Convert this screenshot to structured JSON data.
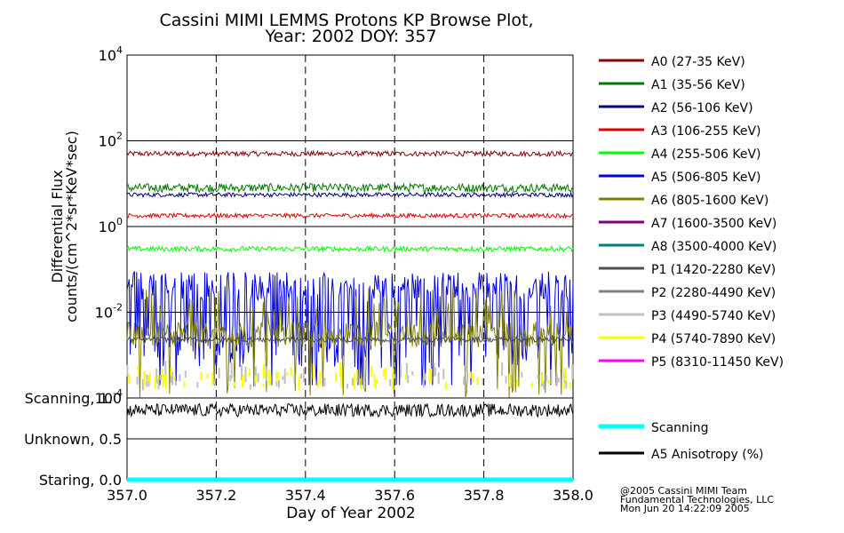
{
  "chart_data": {
    "type": "line",
    "title": "Cassini MIMI LEMMS Protons KP Browse Plot,",
    "subtitle": "Year: 2002 DOY: 357",
    "ylabel": [
      "Differential Flux",
      "counts/(cm^2*sr*KeV*sec)"
    ],
    "xlabel": "Day of Year 2002",
    "x_range": [
      357.0,
      358.0
    ],
    "x_ticks": [
      "357.0",
      "357.2",
      "357.4",
      "357.6",
      "357.8",
      "358.0"
    ],
    "x_tick_values": [
      357.0,
      357.2,
      357.4,
      357.6,
      357.8,
      358.0
    ],
    "y_scale": "log",
    "y_range": [
      0.0001,
      10000
    ],
    "y_ticks": [
      {
        "base": "10",
        "exp": "4",
        "value": 10000
      },
      {
        "base": "10",
        "exp": "2",
        "value": 100
      },
      {
        "base": "10",
        "exp": "0",
        "value": 1
      },
      {
        "base": "10",
        "exp": "-2",
        "value": 0.01
      },
      {
        "base": "10",
        "exp": "-4",
        "value": 0.0001
      }
    ],
    "series": [
      {
        "name": "A0 (27-35 KeV)",
        "color": "#8b0000",
        "level": 50,
        "spread": 0.06,
        "style": "noise"
      },
      {
        "name": "A1 (35-56 KeV)",
        "color": "#007a00",
        "level": 8,
        "spread": 0.1,
        "style": "noise"
      },
      {
        "name": "A2 (56-106 KeV)",
        "color": "#000080",
        "level": 5.5,
        "spread": 0.05,
        "style": "noise"
      },
      {
        "name": "A3 (106-255 KeV)",
        "color": "#e00000",
        "level": 1.8,
        "spread": 0.05,
        "style": "noise"
      },
      {
        "name": "A4 (255-506 KeV)",
        "color": "#00ff00",
        "level": 0.3,
        "spread": 0.06,
        "style": "noise"
      },
      {
        "name": "A5 (506-805 KeV)",
        "color": "#0000e0",
        "level": 0.04,
        "spread": 0.35,
        "style": "burst"
      },
      {
        "name": "A6 (805-1600 KeV)",
        "color": "#808000",
        "level": 0.003,
        "spread": 0.3,
        "style": "spike"
      },
      {
        "name": "A7 (1600-3500 KeV)",
        "color": "#800080",
        "level": null,
        "spread": 0,
        "style": "none"
      },
      {
        "name": "A8 (3500-4000 KeV)",
        "color": "#008080",
        "level": null,
        "spread": 0,
        "style": "none"
      },
      {
        "name": "P1 (1420-2280 KeV)",
        "color": "#505050",
        "level": 0.0023,
        "spread": 0.06,
        "style": "noise"
      },
      {
        "name": "P2 (2280-4490 KeV)",
        "color": "#808080",
        "level": null,
        "spread": 0,
        "style": "none"
      },
      {
        "name": "P3 (4490-5740 KeV)",
        "color": "#c0c0c0",
        "level": 0.00015,
        "spread": 0.2,
        "style": "sparse"
      },
      {
        "name": "P4 (5740-7890 KeV)",
        "color": "#ffff00",
        "level": 0.00015,
        "spread": 0.3,
        "style": "sparse"
      },
      {
        "name": "P5 (8310-11450 KeV)",
        "color": "#ff00ff",
        "level": null,
        "spread": 0,
        "style": "none"
      }
    ],
    "lower_panel": {
      "y_labels": [
        "Scanning, 1.0",
        "Unknown, 0.5",
        "Staring, 0.0"
      ],
      "y_values": [
        1.0,
        0.5,
        0.0
      ],
      "series": [
        {
          "name": "Scanning",
          "color": "#00ffff",
          "value": 0.0
        },
        {
          "name": "A5 Anisotropy (%)",
          "color": "#000000",
          "value": 0.85,
          "spread": 0.08
        }
      ]
    }
  },
  "footer": {
    "line1": "@2005 Cassini MIMI Team",
    "line2": "Fundamental Technologies, LLC",
    "line3": "Mon Jun 20 14:22:09 2005"
  }
}
